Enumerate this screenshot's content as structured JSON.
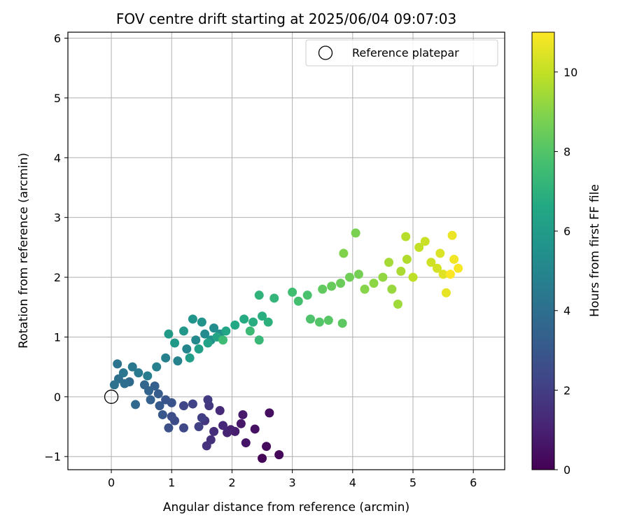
{
  "chart_data": {
    "type": "scatter",
    "title": "FOV centre drift starting at 2025/06/04 09:07:03",
    "xlabel": "Angular distance from reference (arcmin)",
    "ylabel": "Rotation from reference (arcmin)",
    "xlim": [
      -0.72,
      6.52
    ],
    "ylim": [
      -1.22,
      6.1
    ],
    "xticks": [
      0,
      1,
      2,
      3,
      4,
      5,
      6
    ],
    "yticks": [
      -1,
      0,
      1,
      2,
      3,
      4,
      5,
      6
    ],
    "grid": true,
    "legend": {
      "position": "top-right",
      "entries": [
        "Reference platepar"
      ]
    },
    "reference_point": {
      "x": 0,
      "y": 0,
      "name": "Reference platepar"
    },
    "colorbar": {
      "label": "Hours from first FF file",
      "min": 0,
      "max": 11,
      "ticks": [
        0,
        2,
        4,
        6,
        8,
        10
      ],
      "colormap": "viridis"
    },
    "points": [
      [
        2.5,
        -1.03,
        0.1
      ],
      [
        2.78,
        -0.97,
        0.2
      ],
      [
        2.57,
        -0.83,
        0.3
      ],
      [
        2.62,
        -0.27,
        0.4
      ],
      [
        2.38,
        -0.54,
        0.5
      ],
      [
        2.23,
        -0.77,
        0.6
      ],
      [
        2.15,
        -0.45,
        0.7
      ],
      [
        2.18,
        -0.3,
        0.8
      ],
      [
        2.05,
        -0.58,
        0.9
      ],
      [
        1.98,
        -0.55,
        1.0
      ],
      [
        1.92,
        -0.6,
        1.1
      ],
      [
        1.85,
        -0.48,
        1.2
      ],
      [
        1.8,
        -0.23,
        1.3
      ],
      [
        1.7,
        -0.58,
        1.4
      ],
      [
        1.65,
        -0.72,
        1.5
      ],
      [
        1.58,
        -0.82,
        1.6
      ],
      [
        1.55,
        -0.4,
        1.7
      ],
      [
        1.62,
        -0.15,
        1.8
      ],
      [
        1.6,
        -0.05,
        1.9
      ],
      [
        1.5,
        -0.35,
        2.0
      ],
      [
        1.45,
        -0.5,
        2.1
      ],
      [
        1.35,
        -0.12,
        2.2
      ],
      [
        1.2,
        -0.15,
        2.3
      ],
      [
        1.2,
        -0.52,
        2.4
      ],
      [
        1.05,
        -0.4,
        2.5
      ],
      [
        1.0,
        -0.33,
        2.6
      ],
      [
        0.95,
        -0.52,
        2.7
      ],
      [
        1.0,
        -0.1,
        2.8
      ],
      [
        0.9,
        -0.05,
        2.9
      ],
      [
        0.85,
        -0.3,
        3.0
      ],
      [
        0.8,
        -0.15,
        3.1
      ],
      [
        0.78,
        0.05,
        3.2
      ],
      [
        0.72,
        0.18,
        3.3
      ],
      [
        0.65,
        -0.05,
        3.4
      ],
      [
        0.62,
        0.1,
        3.5
      ],
      [
        0.55,
        0.2,
        3.6
      ],
      [
        0.4,
        -0.13,
        3.7
      ],
      [
        0.3,
        0.25,
        3.8
      ],
      [
        0.22,
        0.22,
        3.9
      ],
      [
        0.12,
        0.3,
        4.0
      ],
      [
        0.05,
        0.2,
        4.1
      ],
      [
        0.1,
        0.55,
        4.2
      ],
      [
        0.2,
        0.4,
        4.3
      ],
      [
        0.35,
        0.5,
        4.4
      ],
      [
        0.45,
        0.4,
        4.5
      ],
      [
        0.6,
        0.35,
        4.6
      ],
      [
        0.75,
        0.5,
        4.7
      ],
      [
        0.9,
        0.65,
        4.8
      ],
      [
        1.1,
        0.6,
        4.9
      ],
      [
        1.25,
        0.8,
        5.0
      ],
      [
        1.4,
        0.95,
        5.1
      ],
      [
        1.55,
        1.05,
        5.2
      ],
      [
        1.7,
        1.15,
        5.3
      ],
      [
        1.8,
        1.05,
        5.4
      ],
      [
        1.65,
        0.95,
        5.5
      ],
      [
        1.5,
        1.25,
        5.6
      ],
      [
        1.35,
        1.3,
        5.7
      ],
      [
        1.2,
        1.1,
        5.8
      ],
      [
        1.05,
        0.9,
        5.9
      ],
      [
        0.95,
        1.05,
        6.0
      ],
      [
        1.3,
        0.65,
        6.1
      ],
      [
        1.45,
        0.8,
        6.2
      ],
      [
        1.6,
        0.9,
        6.3
      ],
      [
        1.75,
        1.0,
        6.4
      ],
      [
        1.9,
        1.1,
        6.5
      ],
      [
        2.05,
        1.2,
        6.6
      ],
      [
        2.2,
        1.3,
        6.7
      ],
      [
        2.35,
        1.25,
        6.8
      ],
      [
        2.5,
        1.35,
        6.9
      ],
      [
        2.6,
        1.25,
        7.0
      ],
      [
        2.45,
        1.7,
        7.1
      ],
      [
        2.7,
        1.65,
        7.2
      ],
      [
        2.45,
        0.95,
        7.3
      ],
      [
        2.3,
        1.1,
        7.4
      ],
      [
        1.85,
        0.95,
        7.5
      ],
      [
        3.0,
        1.75,
        7.6
      ],
      [
        3.1,
        1.6,
        7.7
      ],
      [
        3.25,
        1.7,
        7.8
      ],
      [
        3.3,
        1.3,
        7.9
      ],
      [
        3.45,
        1.25,
        8.0
      ],
      [
        3.6,
        1.28,
        8.1
      ],
      [
        3.83,
        1.23,
        8.2
      ],
      [
        3.5,
        1.8,
        8.3
      ],
      [
        3.65,
        1.85,
        8.4
      ],
      [
        3.8,
        1.9,
        8.5
      ],
      [
        3.95,
        2.0,
        8.6
      ],
      [
        4.1,
        2.05,
        8.7
      ],
      [
        4.05,
        2.74,
        8.8
      ],
      [
        3.85,
        2.4,
        8.9
      ],
      [
        4.2,
        1.8,
        9.0
      ],
      [
        4.35,
        1.9,
        9.1
      ],
      [
        4.5,
        2.0,
        9.2
      ],
      [
        4.65,
        1.8,
        9.3
      ],
      [
        4.75,
        1.55,
        9.4
      ],
      [
        4.6,
        2.25,
        9.5
      ],
      [
        4.8,
        2.1,
        9.6
      ],
      [
        4.9,
        2.3,
        9.7
      ],
      [
        4.88,
        2.68,
        9.8
      ],
      [
        5.0,
        2.0,
        9.9
      ],
      [
        5.1,
        2.5,
        10.0
      ],
      [
        5.2,
        2.6,
        10.1
      ],
      [
        5.3,
        2.25,
        10.2
      ],
      [
        5.4,
        2.15,
        10.3
      ],
      [
        5.45,
        2.4,
        10.4
      ],
      [
        5.5,
        2.05,
        10.5
      ],
      [
        5.55,
        1.74,
        10.6
      ],
      [
        5.65,
        2.7,
        10.7
      ],
      [
        5.68,
        2.3,
        10.8
      ],
      [
        5.75,
        2.15,
        10.9
      ],
      [
        5.62,
        2.05,
        11.0
      ]
    ]
  }
}
